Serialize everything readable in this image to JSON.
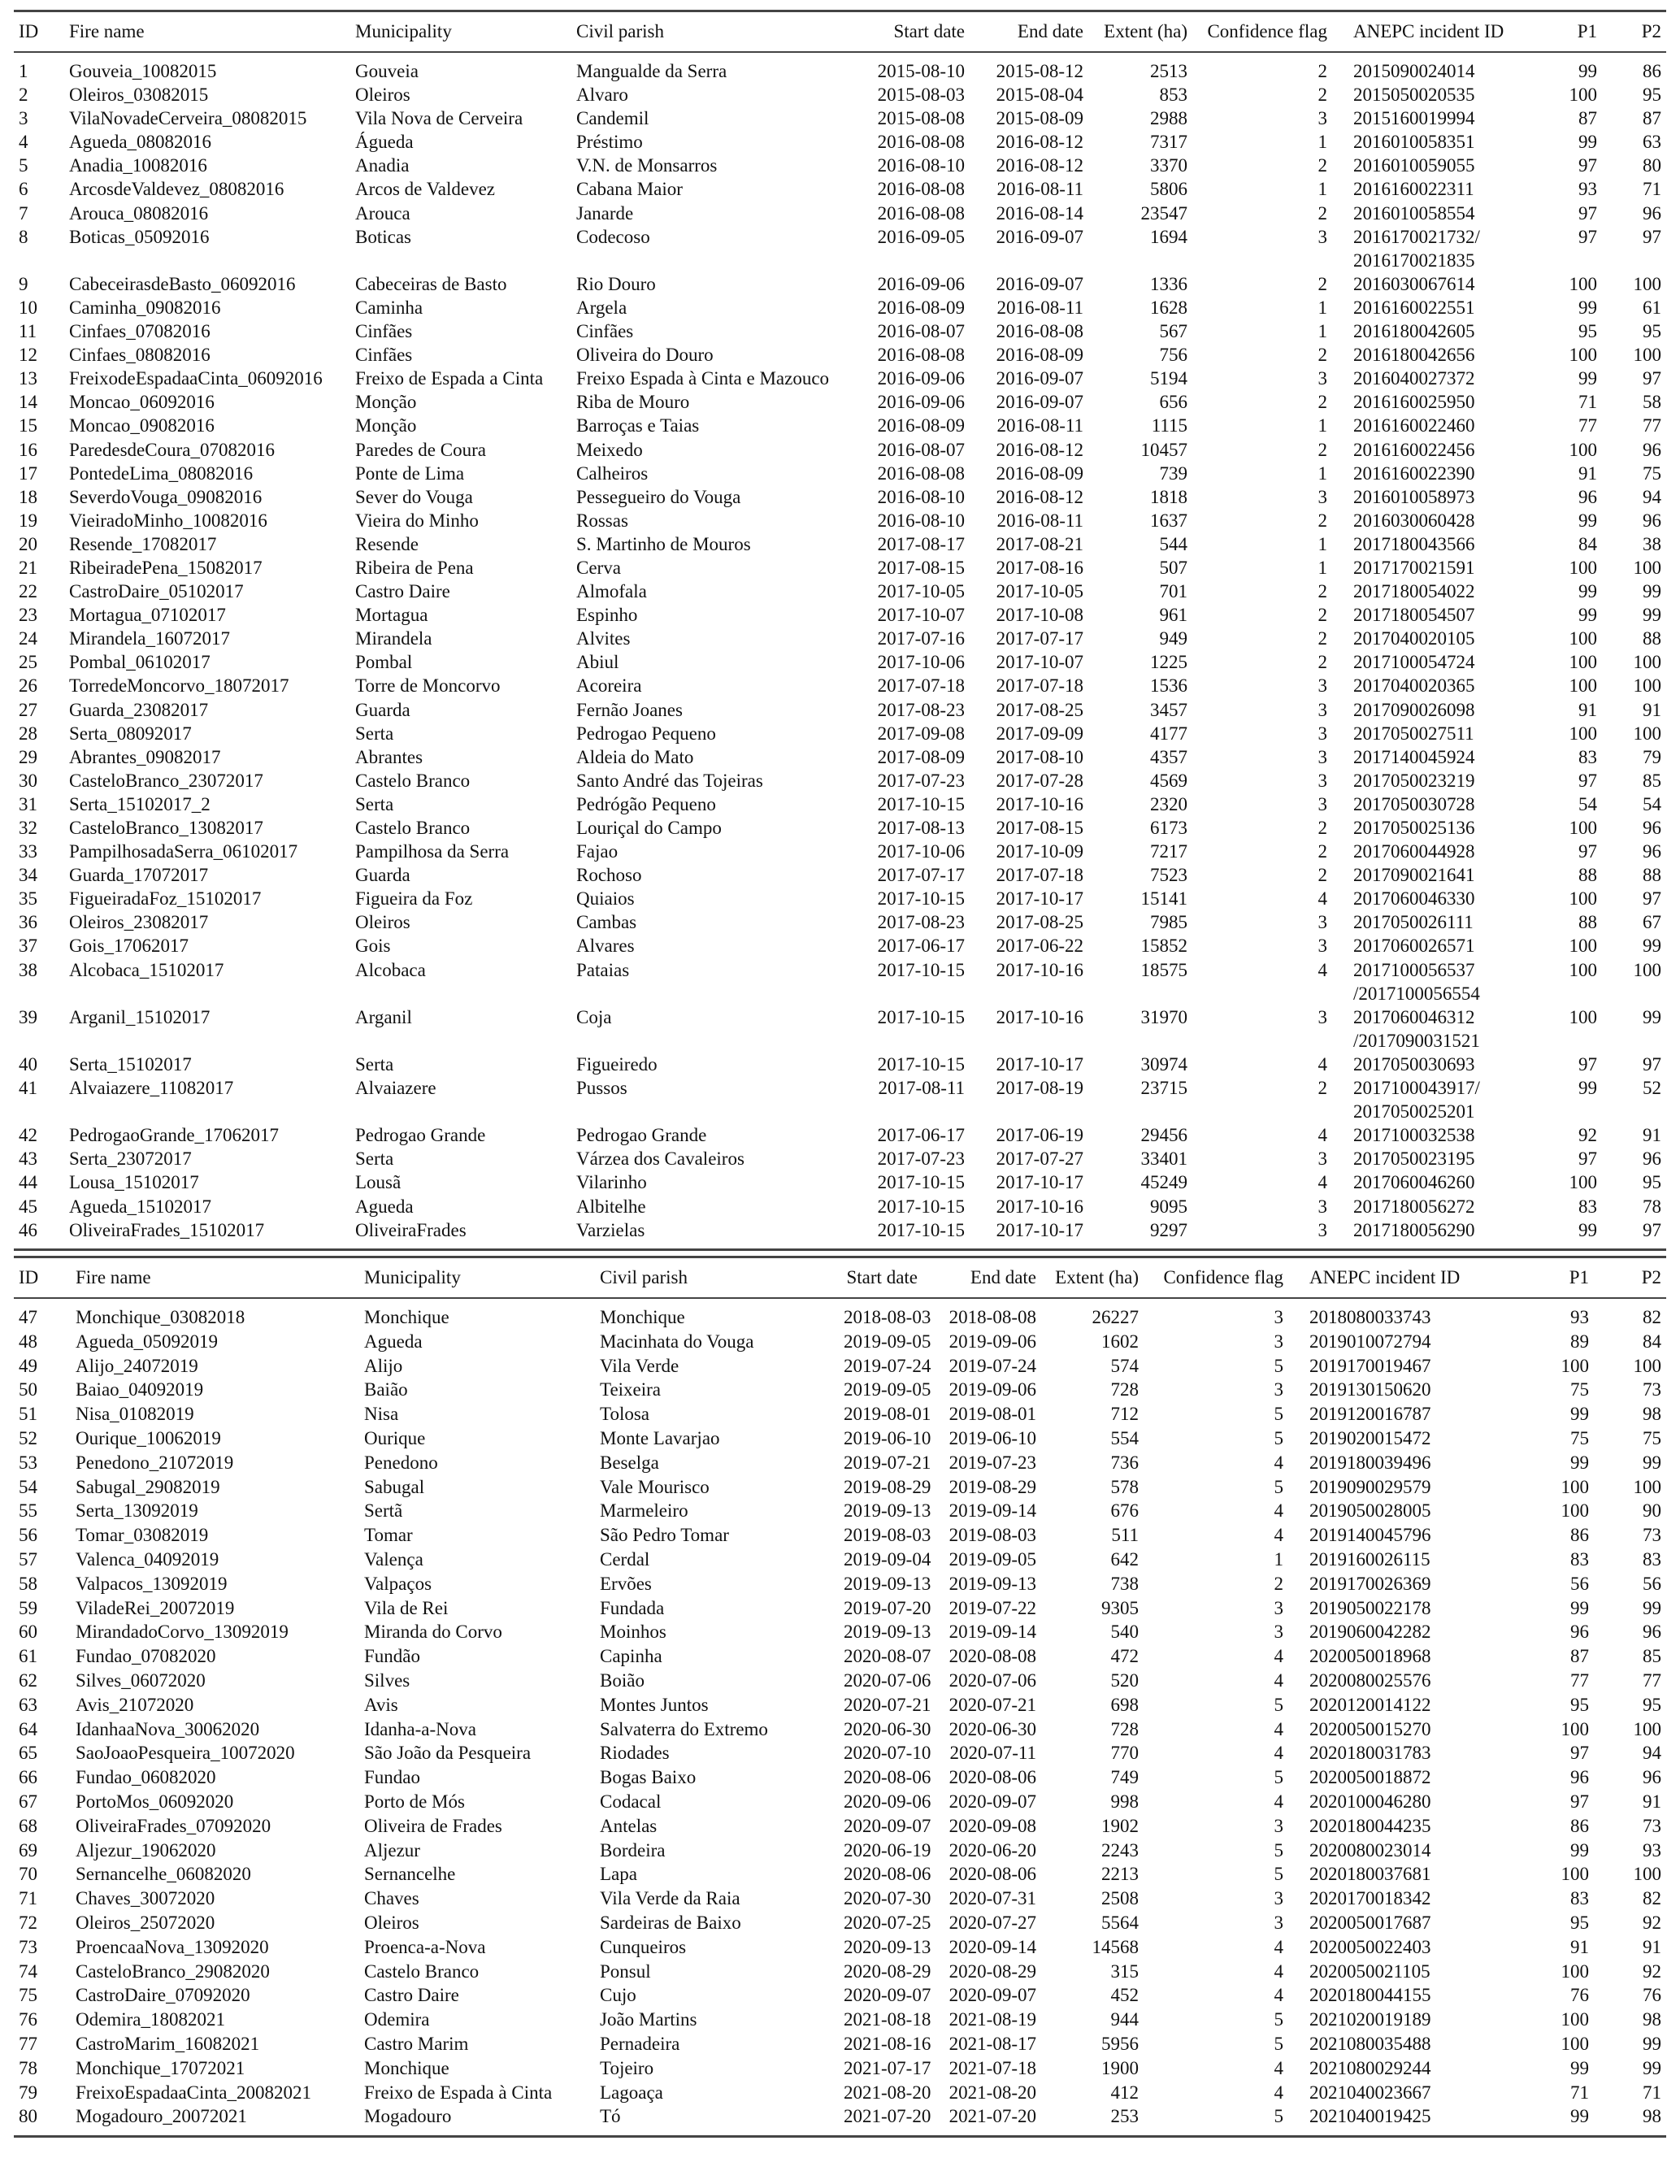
{
  "columns": [
    "ID",
    "Fire name",
    "Municipality",
    "Civil parish",
    "Start date",
    "End date",
    "Extent (ha)",
    "Confidence flag",
    "ANEPC incident ID",
    "P1",
    "P2"
  ],
  "table1_rows": [
    [
      "1",
      "Gouveia_10082015",
      "Gouveia",
      "Mangualde da Serra",
      "2015-08-10",
      "2015-08-12",
      "2513",
      "2",
      "2015090024014",
      "99",
      "86"
    ],
    [
      "2",
      "Oleiros_03082015",
      "Oleiros",
      "Alvaro",
      "2015-08-03",
      "2015-08-04",
      "853",
      "2",
      "2015050020535",
      "100",
      "95"
    ],
    [
      "3",
      "VilaNovadeCerveira_08082015",
      "Vila Nova de Cerveira",
      "Candemil",
      "2015-08-08",
      "2015-08-09",
      "2988",
      "3",
      "2015160019994",
      "87",
      "87"
    ],
    [
      "4",
      "Agueda_08082016",
      "Águeda",
      "Préstimo",
      "2016-08-08",
      "2016-08-12",
      "7317",
      "1",
      "2016010058351",
      "99",
      "63"
    ],
    [
      "5",
      "Anadia_10082016",
      "Anadia",
      "V.N. de Monsarros",
      "2016-08-10",
      "2016-08-12",
      "3370",
      "2",
      "2016010059055",
      "97",
      "80"
    ],
    [
      "6",
      "ArcosdeValdevez_08082016",
      "Arcos de Valdevez",
      "Cabana Maior",
      "2016-08-08",
      "2016-08-11",
      "5806",
      "1",
      "2016160022311",
      "93",
      "71"
    ],
    [
      "7",
      "Arouca_08082016",
      "Arouca",
      "Janarde",
      "2016-08-08",
      "2016-08-14",
      "23547",
      "2",
      "2016010058554",
      "97",
      "96"
    ],
    [
      "8",
      "Boticas_05092016",
      "Boticas",
      "Codecoso",
      "2016-09-05",
      "2016-09-07",
      "1694",
      "3",
      "2016170021732/\n2016170021835",
      "97",
      "97"
    ],
    [
      "9",
      "CabeceirasdeBasto_06092016",
      "Cabeceiras de Basto",
      "Rio Douro",
      "2016-09-06",
      "2016-09-07",
      "1336",
      "2",
      "2016030067614",
      "100",
      "100"
    ],
    [
      "10",
      "Caminha_09082016",
      "Caminha",
      "Argela",
      "2016-08-09",
      "2016-08-11",
      "1628",
      "1",
      "2016160022551",
      "99",
      "61"
    ],
    [
      "11",
      "Cinfaes_07082016",
      "Cinfães",
      "Cinfães",
      "2016-08-07",
      "2016-08-08",
      "567",
      "1",
      "2016180042605",
      "95",
      "95"
    ],
    [
      "12",
      "Cinfaes_08082016",
      "Cinfães",
      "Oliveira do Douro",
      "2016-08-08",
      "2016-08-09",
      "756",
      "2",
      "2016180042656",
      "100",
      "100"
    ],
    [
      "13",
      "FreixodeEspadaaCinta_06092016",
      "Freixo de Espada a Cinta",
      "Freixo Espada à Cinta e Mazouco",
      "2016-09-06",
      "2016-09-07",
      "5194",
      "3",
      "2016040027372",
      "99",
      "97"
    ],
    [
      "14",
      "Moncao_06092016",
      "Monção",
      "Riba de Mouro",
      "2016-09-06",
      "2016-09-07",
      "656",
      "2",
      "2016160025950",
      "71",
      "58"
    ],
    [
      "15",
      "Moncao_09082016",
      "Monção",
      "Barroças e Taias",
      "2016-08-09",
      "2016-08-11",
      "1115",
      "1",
      "2016160022460",
      "77",
      "77"
    ],
    [
      "16",
      "ParedesdeCoura_07082016",
      "Paredes de Coura",
      "Meixedo",
      "2016-08-07",
      "2016-08-12",
      "10457",
      "2",
      "2016160022456",
      "100",
      "96"
    ],
    [
      "17",
      "PontedeLima_08082016",
      "Ponte de Lima",
      "Calheiros",
      "2016-08-08",
      "2016-08-09",
      "739",
      "1",
      "2016160022390",
      "91",
      "75"
    ],
    [
      "18",
      "SeverdoVouga_09082016",
      "Sever do Vouga",
      "Pessegueiro do Vouga",
      "2016-08-10",
      "2016-08-12",
      "1818",
      "3",
      "2016010058973",
      "96",
      "94"
    ],
    [
      "19",
      "VieiradoMinho_10082016",
      "Vieira do Minho",
      "Rossas",
      "2016-08-10",
      "2016-08-11",
      "1637",
      "2",
      "2016030060428",
      "99",
      "96"
    ],
    [
      "20",
      "Resende_17082017",
      "Resende",
      "S. Martinho de Mouros",
      "2017-08-17",
      "2017-08-21",
      "544",
      "1",
      "2017180043566",
      "84",
      "38"
    ],
    [
      "21",
      "RibeiradePena_15082017",
      "Ribeira de Pena",
      "Cerva",
      "2017-08-15",
      "2017-08-16",
      "507",
      "1",
      "2017170021591",
      "100",
      "100"
    ],
    [
      "22",
      "CastroDaire_05102017",
      "Castro Daire",
      "Almofala",
      "2017-10-05",
      "2017-10-05",
      "701",
      "2",
      "2017180054022",
      "99",
      "99"
    ],
    [
      "23",
      "Mortagua_07102017",
      "Mortagua",
      "Espinho",
      "2017-10-07",
      "2017-10-08",
      "961",
      "2",
      "2017180054507",
      "99",
      "99"
    ],
    [
      "24",
      "Mirandela_16072017",
      "Mirandela",
      "Alvites",
      "2017-07-16",
      "2017-07-17",
      "949",
      "2",
      "2017040020105",
      "100",
      "88"
    ],
    [
      "25",
      "Pombal_06102017",
      "Pombal",
      "Abiul",
      "2017-10-06",
      "2017-10-07",
      "1225",
      "2",
      "2017100054724",
      "100",
      "100"
    ],
    [
      "26",
      "TorredeMoncorvo_18072017",
      "Torre de Moncorvo",
      "Acoreira",
      "2017-07-18",
      "2017-07-18",
      "1536",
      "3",
      "2017040020365",
      "100",
      "100"
    ],
    [
      "27",
      "Guarda_23082017",
      "Guarda",
      "Fernão Joanes",
      "2017-08-23",
      "2017-08-25",
      "3457",
      "3",
      "2017090026098",
      "91",
      "91"
    ],
    [
      "28",
      "Serta_08092017",
      "Serta",
      "Pedrogao Pequeno",
      "2017-09-08",
      "2017-09-09",
      "4177",
      "3",
      "2017050027511",
      "100",
      "100"
    ],
    [
      "29",
      "Abrantes_09082017",
      "Abrantes",
      "Aldeia do Mato",
      "2017-08-09",
      "2017-08-10",
      "4357",
      "3",
      "2017140045924",
      "83",
      "79"
    ],
    [
      "30",
      "CasteloBranco_23072017",
      "Castelo Branco",
      "Santo André das Tojeiras",
      "2017-07-23",
      "2017-07-28",
      "4569",
      "3",
      "2017050023219",
      "97",
      "85"
    ],
    [
      "31",
      "Serta_15102017_2",
      "Serta",
      "Pedrógão Pequeno",
      "2017-10-15",
      "2017-10-16",
      "2320",
      "3",
      "2017050030728",
      "54",
      "54"
    ],
    [
      "32",
      "CasteloBranco_13082017",
      "Castelo Branco",
      "Louriçal do Campo",
      "2017-08-13",
      "2017-08-15",
      "6173",
      "2",
      "2017050025136",
      "100",
      "96"
    ],
    [
      "33",
      "PampilhosadaSerra_06102017",
      "Pampilhosa da Serra",
      "Fajao",
      "2017-10-06",
      "2017-10-09",
      "7217",
      "2",
      "2017060044928",
      "97",
      "96"
    ],
    [
      "34",
      "Guarda_17072017",
      "Guarda",
      "Rochoso",
      "2017-07-17",
      "2017-07-18",
      "7523",
      "2",
      "2017090021641",
      "88",
      "88"
    ],
    [
      "35",
      "FigueiradaFoz_15102017",
      "Figueira da Foz",
      "Quiaios",
      "2017-10-15",
      "2017-10-17",
      "15141",
      "4",
      "2017060046330",
      "100",
      "97"
    ],
    [
      "36",
      "Oleiros_23082017",
      "Oleiros",
      "Cambas",
      "2017-08-23",
      "2017-08-25",
      "7985",
      "3",
      "2017050026111",
      "88",
      "67"
    ],
    [
      "37",
      "Gois_17062017",
      "Gois",
      "Alvares",
      "2017-06-17",
      "2017-06-22",
      "15852",
      "3",
      "2017060026571",
      "100",
      "99"
    ],
    [
      "38",
      "Alcobaca_15102017",
      "Alcobaca",
      "Pataias",
      "2017-10-15",
      "2017-10-16",
      "18575",
      "4",
      "2017100056537\n/2017100056554",
      "100",
      "100"
    ],
    [
      "39",
      "Arganil_15102017",
      "Arganil",
      "Coja",
      "2017-10-15",
      "2017-10-16",
      "31970",
      "3",
      "2017060046312\n/2017090031521",
      "100",
      "99"
    ],
    [
      "40",
      "Serta_15102017",
      "Serta",
      "Figueiredo",
      "2017-10-15",
      "2017-10-17",
      "30974",
      "4",
      "2017050030693",
      "97",
      "97"
    ],
    [
      "41",
      "Alvaiazere_11082017",
      "Alvaiazere",
      "Pussos",
      "2017-08-11",
      "2017-08-19",
      "23715",
      "2",
      "2017100043917/\n2017050025201",
      "99",
      "52"
    ],
    [
      "42",
      "PedrogaoGrande_17062017",
      "Pedrogao Grande",
      "Pedrogao Grande",
      "2017-06-17",
      "2017-06-19",
      "29456",
      "4",
      "2017100032538",
      "92",
      "91"
    ],
    [
      "43",
      "Serta_23072017",
      "Serta",
      "Várzea dos Cavaleiros",
      "2017-07-23",
      "2017-07-27",
      "33401",
      "3",
      "2017050023195",
      "97",
      "96"
    ],
    [
      "44",
      "Lousa_15102017",
      "Lousã",
      "Vilarinho",
      "2017-10-15",
      "2017-10-17",
      "45249",
      "4",
      "2017060046260",
      "100",
      "95"
    ],
    [
      "45",
      "Agueda_15102017",
      "Agueda",
      "Albitelhe",
      "2017-10-15",
      "2017-10-16",
      "9095",
      "3",
      "2017180056272",
      "83",
      "78"
    ],
    [
      "46",
      "OliveiraFrades_15102017",
      "OliveiraFrades",
      "Varzielas",
      "2017-10-15",
      "2017-10-17",
      "9297",
      "3",
      "2017180056290",
      "99",
      "97"
    ]
  ],
  "table2_rows": [
    [
      "47",
      "Monchique_03082018",
      "Monchique",
      "Monchique",
      "2018-08-03",
      "2018-08-08",
      "26227",
      "3",
      "2018080033743",
      "93",
      "82"
    ],
    [
      "48",
      "Agueda_05092019",
      "Agueda",
      "Macinhata do Vouga",
      "2019-09-05",
      "2019-09-06",
      "1602",
      "3",
      "2019010072794",
      "89",
      "84"
    ],
    [
      "49",
      "Alijo_24072019",
      "Alijo",
      "Vila Verde",
      "2019-07-24",
      "2019-07-24",
      "574",
      "5",
      "2019170019467",
      "100",
      "100"
    ],
    [
      "50",
      "Baiao_04092019",
      "Baião",
      "Teixeira",
      "2019-09-05",
      "2019-09-06",
      "728",
      "3",
      "2019130150620",
      "75",
      "73"
    ],
    [
      "51",
      "Nisa_01082019",
      "Nisa",
      "Tolosa",
      "2019-08-01",
      "2019-08-01",
      "712",
      "5",
      "2019120016787",
      "99",
      "98"
    ],
    [
      "52",
      "Ourique_10062019",
      "Ourique",
      "Monte Lavarjao",
      "2019-06-10",
      "2019-06-10",
      "554",
      "5",
      "2019020015472",
      "75",
      "75"
    ],
    [
      "53",
      "Penedono_21072019",
      "Penedono",
      "Beselga",
      "2019-07-21",
      "2019-07-23",
      "736",
      "4",
      "2019180039496",
      "99",
      "99"
    ],
    [
      "54",
      "Sabugal_29082019",
      "Sabugal",
      "Vale Mourisco",
      "2019-08-29",
      "2019-08-29",
      "578",
      "5",
      "2019090029579",
      "100",
      "100"
    ],
    [
      "55",
      "Serta_13092019",
      "Sertã",
      "Marmeleiro",
      "2019-09-13",
      "2019-09-14",
      "676",
      "4",
      "2019050028005",
      "100",
      "90"
    ],
    [
      "56",
      "Tomar_03082019",
      "Tomar",
      "São Pedro Tomar",
      "2019-08-03",
      "2019-08-03",
      "511",
      "4",
      "2019140045796",
      "86",
      "73"
    ],
    [
      "57",
      "Valenca_04092019",
      "Valença",
      "Cerdal",
      "2019-09-04",
      "2019-09-05",
      "642",
      "1",
      "2019160026115",
      "83",
      "83"
    ],
    [
      "58",
      "Valpacos_13092019",
      "Valpaços",
      "Ervões",
      "2019-09-13",
      "2019-09-13",
      "738",
      "2",
      "2019170026369",
      "56",
      "56"
    ],
    [
      "59",
      "ViladeRei_20072019",
      "Vila de Rei",
      "Fundada",
      "2019-07-20",
      "2019-07-22",
      "9305",
      "3",
      "2019050022178",
      "99",
      "99"
    ],
    [
      "60",
      "MirandadoCorvo_13092019",
      "Miranda do Corvo",
      "Moinhos",
      "2019-09-13",
      "2019-09-14",
      "540",
      "3",
      "2019060042282",
      "96",
      "96"
    ],
    [
      "61",
      "Fundao_07082020",
      "Fundão",
      "Capinha",
      "2020-08-07",
      "2020-08-08",
      "472",
      "4",
      "2020050018968",
      "87",
      "85"
    ],
    [
      "62",
      "Silves_06072020",
      "Silves",
      "Boião",
      "2020-07-06",
      "2020-07-06",
      "520",
      "4",
      "2020080025576",
      "77",
      "77"
    ],
    [
      "63",
      "Avis_21072020",
      "Avis",
      "Montes Juntos",
      "2020-07-21",
      "2020-07-21",
      "698",
      "5",
      "2020120014122",
      "95",
      "95"
    ],
    [
      "64",
      "IdanhaaNova_30062020",
      "Idanha-a-Nova",
      "Salvaterra do Extremo",
      "2020-06-30",
      "2020-06-30",
      "728",
      "4",
      "2020050015270",
      "100",
      "100"
    ],
    [
      "65",
      "SaoJoaoPesqueira_10072020",
      "São João da Pesqueira",
      "Riodades",
      "2020-07-10",
      "2020-07-11",
      "770",
      "4",
      "2020180031783",
      "97",
      "94"
    ],
    [
      "66",
      "Fundao_06082020",
      "Fundao",
      "Bogas Baixo",
      "2020-08-06",
      "2020-08-06",
      "749",
      "5",
      "2020050018872",
      "96",
      "96"
    ],
    [
      "67",
      "PortoMos_06092020",
      "Porto de Mós",
      "Codacal",
      "2020-09-06",
      "2020-09-07",
      "998",
      "4",
      "2020100046280",
      "97",
      "91"
    ],
    [
      "68",
      "OliveiraFrades_07092020",
      "Oliveira de Frades",
      "Antelas",
      "2020-09-07",
      "2020-09-08",
      "1902",
      "3",
      "2020180044235",
      "86",
      "73"
    ],
    [
      "69",
      "Aljezur_19062020",
      "Aljezur",
      "Bordeira",
      "2020-06-19",
      "2020-06-20",
      "2243",
      "5",
      "2020080023014",
      "99",
      "93"
    ],
    [
      "70",
      "Sernancelhe_06082020",
      "Sernancelhe",
      "Lapa",
      "2020-08-06",
      "2020-08-06",
      "2213",
      "5",
      "2020180037681",
      "100",
      "100"
    ],
    [
      "71",
      "Chaves_30072020",
      "Chaves",
      "Vila Verde da Raia",
      "2020-07-30",
      "2020-07-31",
      "2508",
      "3",
      "2020170018342",
      "83",
      "82"
    ],
    [
      "72",
      "Oleiros_25072020",
      "Oleiros",
      "Sardeiras de Baixo",
      "2020-07-25",
      "2020-07-27",
      "5564",
      "3",
      "2020050017687",
      "95",
      "92"
    ],
    [
      "73",
      "ProencaaNova_13092020",
      "Proenca-a-Nova",
      "Cunqueiros",
      "2020-09-13",
      "2020-09-14",
      "14568",
      "4",
      "2020050022403",
      "91",
      "91"
    ],
    [
      "74",
      "CasteloBranco_29082020",
      "Castelo Branco",
      "Ponsul",
      "2020-08-29",
      "2020-08-29",
      "315",
      "4",
      "2020050021105",
      "100",
      "92"
    ],
    [
      "75",
      "CastroDaire_07092020",
      "Castro Daire",
      "Cujo",
      "2020-09-07",
      "2020-09-07",
      "452",
      "4",
      "2020180044155",
      "76",
      "76"
    ],
    [
      "76",
      "Odemira_18082021",
      "Odemira",
      "João Martins",
      "2021-08-18",
      "2021-08-19",
      "944",
      "5",
      "2021020019189",
      "100",
      "98"
    ],
    [
      "77",
      "CastroMarim_16082021",
      "Castro Marim",
      "Pernadeira",
      "2021-08-16",
      "2021-08-17",
      "5956",
      "5",
      "2021080035488",
      "100",
      "99"
    ],
    [
      "78",
      "Monchique_17072021",
      "Monchique",
      "Tojeiro",
      "2021-07-17",
      "2021-07-18",
      "1900",
      "4",
      "2021080029244",
      "99",
      "99"
    ],
    [
      "79",
      "FreixoEspadaaCinta_20082021",
      "Freixo de Espada à Cinta",
      "Lagoaça",
      "2021-08-20",
      "2021-08-20",
      "412",
      "4",
      "2021040023667",
      "71",
      "71"
    ],
    [
      "80",
      "Mogadouro_20072021",
      "Mogadouro",
      "Tó",
      "2021-07-20",
      "2021-07-20",
      "253",
      "5",
      "2021040019425",
      "99",
      "98"
    ]
  ]
}
